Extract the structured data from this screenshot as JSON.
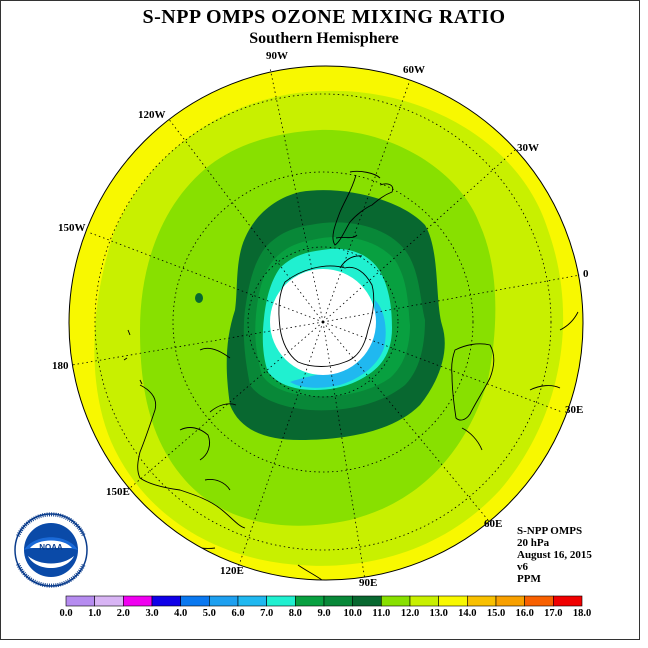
{
  "title": "S-NPP OMPS OZONE MIXING RATIO",
  "subtitle": "Southern Hemisphere",
  "longitude_labels": {
    "lon_90w": "90W",
    "lon_60w": "60W",
    "lon_120w": "120W",
    "lon_30w": "30W",
    "lon_150w": "150W",
    "lon_0": "0",
    "lon_180": "180",
    "lon_30e": "30E",
    "lon_150e": "150E",
    "lon_60e": "60E",
    "lon_120e": "120E",
    "lon_90e": "90E"
  },
  "info": {
    "instrument": "S-NPP OMPS",
    "level": "20 hPa",
    "date": "August 16, 2015",
    "version": "v6",
    "units": "PPM"
  },
  "logo": {
    "text": "NOAA",
    "ring_text": "NATIONAL OCEANIC AND ATMOSPHERIC ADMINISTRATION"
  },
  "colorbar": {
    "labels": [
      "0.0",
      "1.0",
      "2.0",
      "3.0",
      "4.0",
      "5.0",
      "6.0",
      "7.0",
      "8.0",
      "9.0",
      "10.0",
      "11.0",
      "12.0",
      "13.0",
      "14.0",
      "15.0",
      "16.0",
      "17.0",
      "18.0"
    ],
    "colors": [
      "#b68cf0",
      "#d8b4f4",
      "#f000f0",
      "#1000e8",
      "#0a78f0",
      "#1ea0f0",
      "#20b8f0",
      "#20f0d0",
      "#08a040",
      "#088838",
      "#086830",
      "#88e000",
      "#c8f000",
      "#f8f800",
      "#f8c000",
      "#f8a000",
      "#f86000",
      "#f00000",
      "#805840"
    ]
  },
  "chart_data": {
    "type": "heatmap",
    "projection": "south polar stereographic",
    "variable": "ozone mixing ratio",
    "units": "PPM",
    "scale_min": 0.0,
    "scale_max": 18.0,
    "scale_step": 1.0,
    "contour_bands_ppm": [
      {
        "range": [
          13,
          14
        ],
        "color": "#f8f800",
        "region": "outer edge (low latitudes)"
      },
      {
        "range": [
          12,
          13
        ],
        "color": "#c8f000",
        "region": "subtropical ring"
      },
      {
        "range": [
          11,
          12
        ],
        "color": "#88e000",
        "region": "mid-latitude ring"
      },
      {
        "range": [
          10,
          11
        ],
        "color": "#086830",
        "region": "vortex edge"
      },
      {
        "range": [
          9,
          10
        ],
        "color": "#088838",
        "region": "inner vortex"
      },
      {
        "range": [
          8,
          9
        ],
        "color": "#08a040",
        "region": "inner vortex"
      },
      {
        "range": [
          7,
          8
        ],
        "color": "#20f0d0",
        "region": "polar collar"
      },
      {
        "range": [
          6,
          7
        ],
        "color": "#20b8f0",
        "region": "polar collar (60E-90E side)"
      }
    ],
    "missing_data_region": "polar cap (white, no data)"
  }
}
